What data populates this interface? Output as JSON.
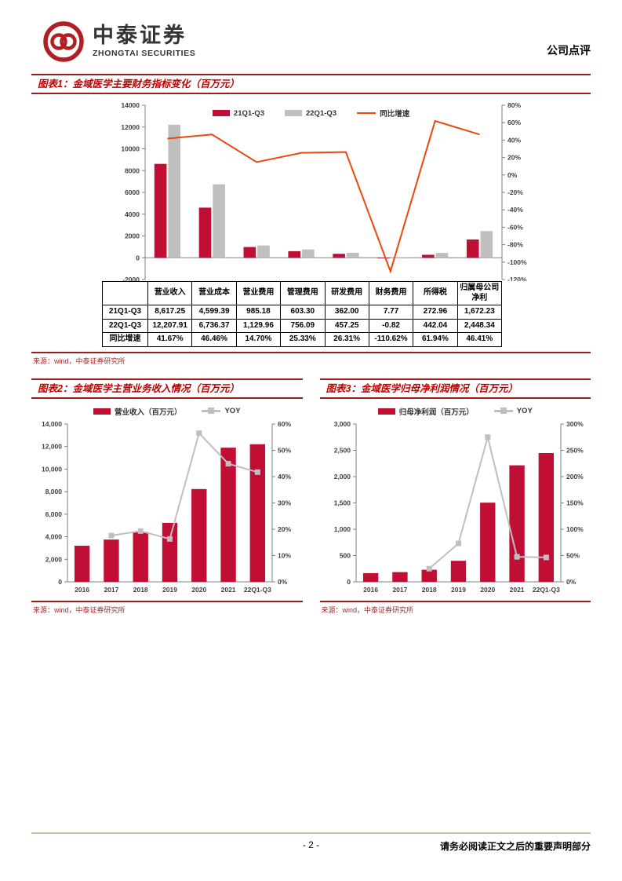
{
  "header": {
    "logo_cn": "中泰证券",
    "logo_en": "ZHONGTAI SECURITIES",
    "doc_type": "公司点评"
  },
  "footer": {
    "page_number": "- 2 -",
    "disclaimer": "请务必阅读正文之后的重要声明部分"
  },
  "colors": {
    "title_red": "#C00000",
    "rule_red": "#9E1B1B",
    "bar_crimson": "#C00E35",
    "bar_gray": "#BFBFBF",
    "line_orange": "#E8490F",
    "line_gray": "#BFBFBF",
    "source_red": "#A52A2A",
    "footer_line_tan": "#CFC0A0"
  },
  "figure1": {
    "title": "图表1：金域医学主要财务指标变化（百万元）",
    "source": "来源：wind，中泰证券研究所",
    "table": {
      "corner": "",
      "columns": [
        "营业收入",
        "营业成本",
        "营业费用",
        "管理费用",
        "研发费用",
        "财务费用",
        "所得税",
        "归属母公司净利"
      ],
      "rows": [
        {
          "label": "21Q1-Q3",
          "values": [
            "8,617.25",
            "4,599.39",
            "985.18",
            "603.30",
            "362.00",
            "7.77",
            "272.96",
            "1,672.23"
          ]
        },
        {
          "label": "22Q1-Q3",
          "values": [
            "12,207.91",
            "6,736.37",
            "1,129.96",
            "756.09",
            "457.25",
            "-0.82",
            "442.04",
            "2,448.34"
          ]
        },
        {
          "label": "同比增速",
          "values": [
            "41.67%",
            "46.46%",
            "14.70%",
            "25.33%",
            "26.31%",
            "-110.62%",
            "61.94%",
            "46.41%"
          ]
        }
      ]
    }
  },
  "figure2": {
    "title": "图表2：金域医学主营业务收入情况（百万元）",
    "source": "来源：wind，中泰证券研究所"
  },
  "figure3": {
    "title": "图表3：金域医学归母净利润情况（百万元）",
    "source": "来源：wind，中泰证券研究所"
  },
  "chart_data": [
    {
      "id": "chart1",
      "type": "bar",
      "title": "金域医学主要财务指标变化（百万元）",
      "categories": [
        "营业收入",
        "营业成本",
        "营业费用",
        "管理费用",
        "研发费用",
        "财务费用",
        "所得税",
        "归属母公司净利"
      ],
      "bar_series": [
        {
          "name": "21Q1-Q3",
          "color": "#C00E35",
          "values": [
            8617.25,
            4599.39,
            985.18,
            603.3,
            362.0,
            7.77,
            272.96,
            1672.23
          ]
        },
        {
          "name": "22Q1-Q3",
          "color": "#BFBFBF",
          "values": [
            12207.91,
            6736.37,
            1129.96,
            756.09,
            457.25,
            -0.82,
            442.04,
            2448.34
          ]
        }
      ],
      "line_series": [
        {
          "name": "同比增速",
          "color": "#E8490F",
          "marker": "none",
          "values": [
            41.67,
            46.46,
            14.7,
            25.33,
            26.31,
            -110.62,
            61.94,
            46.41
          ]
        }
      ],
      "left_axis": {
        "min": -2000,
        "max": 14000,
        "step": 2000,
        "format": "plain",
        "label": ""
      },
      "right_axis": {
        "min": -120,
        "max": 80,
        "step": 20,
        "format": "percent"
      },
      "legend_position": "top-center-inside",
      "grid": false
    },
    {
      "id": "chart2",
      "type": "bar",
      "title": "金域医学主营业务收入情况（百万元）",
      "categories": [
        "2016",
        "2017",
        "2018",
        "2019",
        "2020",
        "2021",
        "22Q1-Q3"
      ],
      "bar_series": [
        {
          "name": "营业收入（百万元）",
          "color": "#C00E35",
          "values": [
            3200,
            3750,
            4430,
            5230,
            8230,
            11900,
            12208
          ]
        }
      ],
      "line_series": [
        {
          "name": "YOY",
          "color": "#BFBFBF",
          "marker": "square",
          "values": [
            null,
            17.6,
            19.3,
            16.3,
            56.5,
            44.9,
            41.7
          ]
        }
      ],
      "left_axis": {
        "min": 0,
        "max": 14000,
        "step": 2000,
        "format": "comma",
        "label": ""
      },
      "right_axis": {
        "min": 0,
        "max": 60,
        "step": 10,
        "format": "percent"
      },
      "legend_position": "top-center",
      "grid": false
    },
    {
      "id": "chart3",
      "type": "bar",
      "title": "金域医学归母净利润情况（百万元）",
      "categories": [
        "2016",
        "2017",
        "2018",
        "2019",
        "2020",
        "2021",
        "22Q1-Q3"
      ],
      "bar_series": [
        {
          "name": "归母净利润（百万元）",
          "color": "#C00E35",
          "values": [
            165,
            185,
            230,
            400,
            1505,
            2215,
            2448
          ]
        }
      ],
      "line_series": [
        {
          "name": "YOY",
          "color": "#BFBFBF",
          "marker": "square",
          "values": [
            null,
            null,
            25,
            73,
            275,
            47.5,
            46.4
          ]
        }
      ],
      "left_axis": {
        "min": 0,
        "max": 3000,
        "step": 500,
        "format": "comma",
        "label": ""
      },
      "right_axis": {
        "min": 0,
        "max": 300,
        "step": 50,
        "format": "percent"
      },
      "legend_position": "top-center",
      "grid": false
    }
  ]
}
